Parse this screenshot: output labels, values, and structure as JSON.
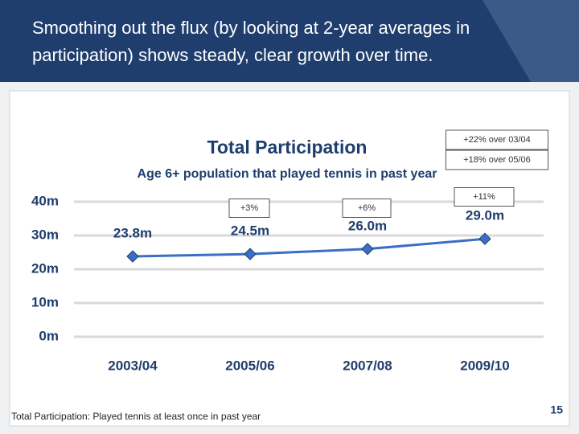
{
  "slide": {
    "heading": [
      "Smoothing out the flux (by looking at 2-year averages in",
      "participation) shows steady, clear growth over time."
    ],
    "footnote": "Total Participation:  Played tennis at least once in past year",
    "page_number": "15"
  },
  "chart_data": {
    "type": "line",
    "title": "Total Participation",
    "subtitle": "Age 6+ population that played tennis in past year",
    "categories": [
      "2003/04",
      "2005/06",
      "2007/08",
      "2009/10"
    ],
    "values": [
      23.8,
      24.5,
      26.0,
      29.0
    ],
    "value_labels": [
      "23.8m",
      "24.5m",
      "26.0m",
      "29.0m"
    ],
    "color": "#3a6fc4",
    "ylim": [
      0,
      40
    ],
    "yticks": [
      {
        "value": 0,
        "label": "0m"
      },
      {
        "value": 10,
        "label": "10m"
      },
      {
        "value": 20,
        "label": "20m"
      },
      {
        "value": 30,
        "label": "30m"
      },
      {
        "value": 40,
        "label": "40m"
      }
    ],
    "grid": true,
    "change_labels": [
      "+3%",
      "+6%",
      "+11%"
    ],
    "summary_labels": [
      "+22% over 03/04",
      "+18% over 05/06"
    ]
  }
}
